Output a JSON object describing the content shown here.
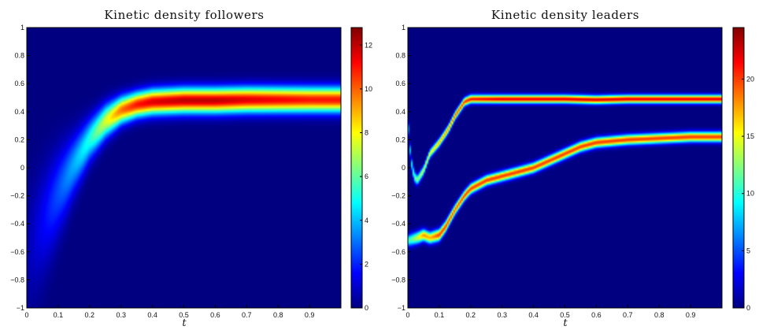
{
  "chart_data": [
    {
      "type": "heatmap",
      "title": "Kinetic density followers",
      "xlabel": "t",
      "ylabel": "",
      "xlim": [
        0,
        1
      ],
      "ylim": [
        -1,
        1
      ],
      "x_ticks": [
        0,
        0.1,
        0.2,
        0.3,
        0.4,
        0.5,
        0.6,
        0.7,
        0.8,
        0.9
      ],
      "x_tick_labels": [
        "0",
        "0.1",
        "0.2",
        "0.3",
        "0.4",
        "0.5",
        "0.6",
        "0.7",
        "0.8",
        "0.9"
      ],
      "y_ticks": [
        -1,
        -0.8,
        -0.6,
        -0.4,
        -0.2,
        0,
        0.2,
        0.4,
        0.6,
        0.8,
        1
      ],
      "y_tick_labels": [
        "−1",
        "−0.8",
        "−0.6",
        "−0.4",
        "−0.2",
        "0",
        "0.2",
        "0.4",
        "0.6",
        "0.8",
        "1"
      ],
      "colormap": "jet",
      "colorbar": {
        "range": [
          0,
          12.8
        ],
        "ticks": [
          0,
          2,
          4,
          6,
          8,
          10,
          12
        ],
        "tick_labels": [
          "0",
          "2",
          "4",
          "6",
          "8",
          "10",
          "12"
        ]
      },
      "series": [
        {
          "t": [
            0.0,
            0.05,
            0.1,
            0.15,
            0.2,
            0.25,
            0.3,
            0.35,
            0.4,
            0.5,
            0.6,
            0.7,
            0.8,
            0.9,
            1.0
          ],
          "center": [
            -0.62,
            -0.4,
            -0.18,
            0.02,
            0.2,
            0.33,
            0.41,
            0.45,
            0.47,
            0.48,
            0.48,
            0.485,
            0.485,
            0.485,
            0.485
          ],
          "width": [
            0.32,
            0.26,
            0.2,
            0.14,
            0.1,
            0.08,
            0.065,
            0.06,
            0.06,
            0.06,
            0.06,
            0.06,
            0.06,
            0.06,
            0.06
          ],
          "peak": [
            0.5,
            1.5,
            2.6,
            3.8,
            5.2,
            7.5,
            9.8,
            11.0,
            11.6,
            12.0,
            12.0,
            11.6,
            11.3,
            11.0,
            11.0
          ]
        }
      ]
    },
    {
      "type": "heatmap",
      "title": "Kinetic density leaders",
      "xlabel": "t",
      "ylabel": "",
      "xlim": [
        0,
        1
      ],
      "ylim": [
        -1,
        1
      ],
      "x_ticks": [
        0,
        0.1,
        0.2,
        0.3,
        0.4,
        0.5,
        0.6,
        0.7,
        0.8,
        0.9
      ],
      "x_tick_labels": [
        "0",
        "0.1",
        "0.2",
        "0.3",
        "0.4",
        "0.5",
        "0.6",
        "0.7",
        "0.8",
        "0.9"
      ],
      "y_ticks": [
        -1,
        -0.8,
        -0.6,
        -0.4,
        -0.2,
        0,
        0.2,
        0.4,
        0.6,
        0.8,
        1
      ],
      "y_tick_labels": [
        "−1",
        "−0.8",
        "−0.6",
        "−0.4",
        "−0.2",
        "0",
        "0.2",
        "0.4",
        "0.6",
        "0.8",
        "1"
      ],
      "colormap": "jet",
      "colorbar": {
        "range": [
          0,
          24.5
        ],
        "ticks": [
          0,
          5,
          10,
          15,
          20
        ],
        "tick_labels": [
          "0",
          "5",
          "10",
          "15",
          "20"
        ]
      },
      "series": [
        {
          "t": [
            0.0,
            0.01,
            0.02,
            0.03,
            0.05,
            0.07,
            0.1,
            0.13,
            0.15,
            0.18,
            0.2,
            0.3,
            0.4,
            0.5,
            0.6,
            0.7,
            0.8,
            0.9,
            1.0
          ],
          "center": [
            0.35,
            0.05,
            -0.06,
            -0.09,
            -0.02,
            0.1,
            0.18,
            0.28,
            0.37,
            0.47,
            0.49,
            0.49,
            0.49,
            0.49,
            0.485,
            0.49,
            0.49,
            0.49,
            0.49
          ],
          "width": [
            0.035,
            0.03,
            0.028,
            0.025,
            0.022,
            0.02,
            0.02,
            0.02,
            0.02,
            0.02,
            0.02,
            0.02,
            0.02,
            0.02,
            0.02,
            0.02,
            0.02,
            0.02,
            0.02
          ],
          "peak": [
            6,
            9,
            11,
            12,
            14,
            15,
            17,
            18,
            19,
            20,
            21,
            22,
            22,
            22,
            22,
            22,
            22,
            22,
            22
          ]
        },
        {
          "t": [
            0.0,
            0.03,
            0.05,
            0.07,
            0.1,
            0.12,
            0.15,
            0.18,
            0.2,
            0.25,
            0.3,
            0.35,
            0.4,
            0.45,
            0.5,
            0.55,
            0.6,
            0.7,
            0.8,
            0.9,
            1.0
          ],
          "center": [
            -0.52,
            -0.5,
            -0.48,
            -0.5,
            -0.48,
            -0.42,
            -0.3,
            -0.2,
            -0.15,
            -0.09,
            -0.06,
            -0.03,
            0.0,
            0.05,
            0.1,
            0.15,
            0.18,
            0.2,
            0.21,
            0.22,
            0.22
          ],
          "width": [
            0.03,
            0.03,
            0.028,
            0.028,
            0.028,
            0.026,
            0.024,
            0.024,
            0.024,
            0.024,
            0.024,
            0.024,
            0.024,
            0.024,
            0.024,
            0.024,
            0.024,
            0.024,
            0.024,
            0.024,
            0.024
          ],
          "peak": [
            10,
            14,
            18,
            17,
            20,
            20,
            19,
            20,
            20,
            20,
            20,
            20,
            20,
            20,
            20,
            20,
            20,
            20,
            20,
            20,
            20
          ]
        }
      ]
    }
  ]
}
